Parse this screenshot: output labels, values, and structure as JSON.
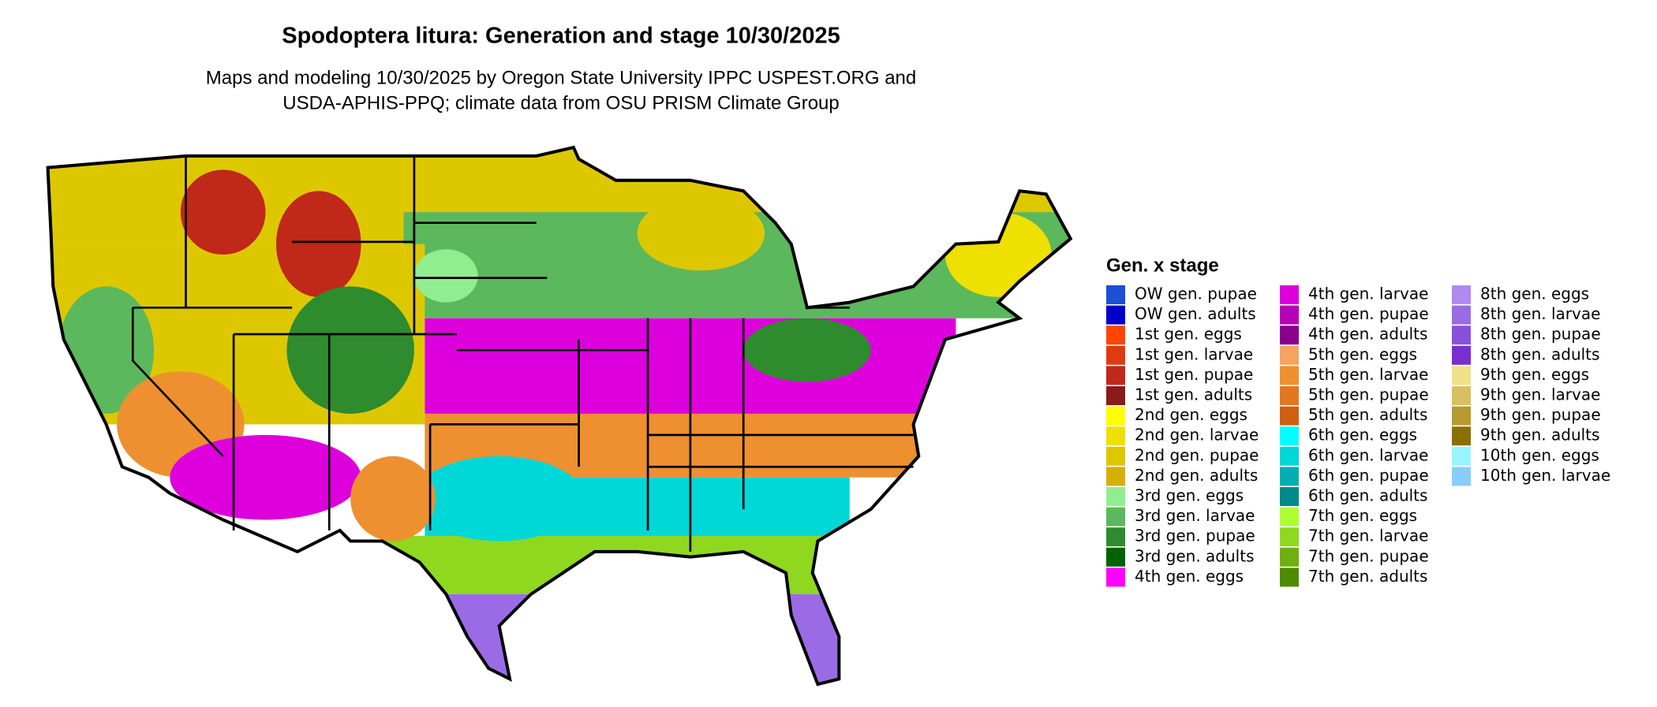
{
  "title": "Spodoptera litura: Generation and stage 10/30/2025",
  "subtitle": [
    "Maps and modeling 10/30/2025 by Oregon State University IPPC USPEST.ORG and",
    "USDA-APHIS-PPQ; climate data from OSU PRISM Climate Group"
  ],
  "legend": {
    "title": "Gen. x stage",
    "items": [
      {
        "label": "OW gen. pupae",
        "color": "#1a4fd6"
      },
      {
        "label": "OW gen. adults",
        "color": "#0000c8"
      },
      {
        "label": "1st gen. eggs",
        "color": "#ff4500"
      },
      {
        "label": "1st gen. larvae",
        "color": "#e03a10"
      },
      {
        "label": "1st gen. pupae",
        "color": "#c0281a"
      },
      {
        "label": "1st gen. adults",
        "color": "#8b1a1a"
      },
      {
        "label": "2nd gen. eggs",
        "color": "#ffff00"
      },
      {
        "label": "2nd gen. larvae",
        "color": "#eee000"
      },
      {
        "label": "2nd gen. pupae",
        "color": "#ddc800"
      },
      {
        "label": "2nd gen. adults",
        "color": "#d4b000"
      },
      {
        "label": "3rd gen. eggs",
        "color": "#90ee90"
      },
      {
        "label": "3rd gen. larvae",
        "color": "#5cb85c"
      },
      {
        "label": "3rd gen. pupae",
        "color": "#2e8b2e"
      },
      {
        "label": "3rd gen. adults",
        "color": "#006400"
      },
      {
        "label": "4th gen. eggs",
        "color": "#ff00ff"
      },
      {
        "label": "4th gen. larvae",
        "color": "#dd00dd"
      },
      {
        "label": "4th gen. pupae",
        "color": "#b800b8"
      },
      {
        "label": "4th gen. adults",
        "color": "#8b008b"
      },
      {
        "label": "5th gen. eggs",
        "color": "#f4a460"
      },
      {
        "label": "5th gen. larvae",
        "color": "#ee9030"
      },
      {
        "label": "5th gen. pupae",
        "color": "#e07820"
      },
      {
        "label": "5th gen. adults",
        "color": "#d06010"
      },
      {
        "label": "6th gen. eggs",
        "color": "#00ffff"
      },
      {
        "label": "6th gen. larvae",
        "color": "#00d8d8"
      },
      {
        "label": "6th gen. pupae",
        "color": "#00b0b0"
      },
      {
        "label": "6th gen. adults",
        "color": "#008b8b"
      },
      {
        "label": "7th gen. eggs",
        "color": "#adff2f"
      },
      {
        "label": "7th gen. larvae",
        "color": "#8fd81f"
      },
      {
        "label": "7th gen. pupae",
        "color": "#6fb010"
      },
      {
        "label": "7th gen. adults",
        "color": "#4f8b00"
      },
      {
        "label": "8th gen. eggs",
        "color": "#b08af0"
      },
      {
        "label": "8th gen. larvae",
        "color": "#9b6be6"
      },
      {
        "label": "8th gen. pupae",
        "color": "#8a50dc"
      },
      {
        "label": "8th gen. adults",
        "color": "#7a2ed0"
      },
      {
        "label": "9th gen. eggs",
        "color": "#f0e08a"
      },
      {
        "label": "9th gen. larvae",
        "color": "#d8c060"
      },
      {
        "label": "9th gen. pupae",
        "color": "#b89a30"
      },
      {
        "label": "9th gen. adults",
        "color": "#8b7000"
      },
      {
        "label": "10th gen. eggs",
        "color": "#98f5ff"
      },
      {
        "label": "10th gen. larvae",
        "color": "#87cefa"
      }
    ]
  }
}
